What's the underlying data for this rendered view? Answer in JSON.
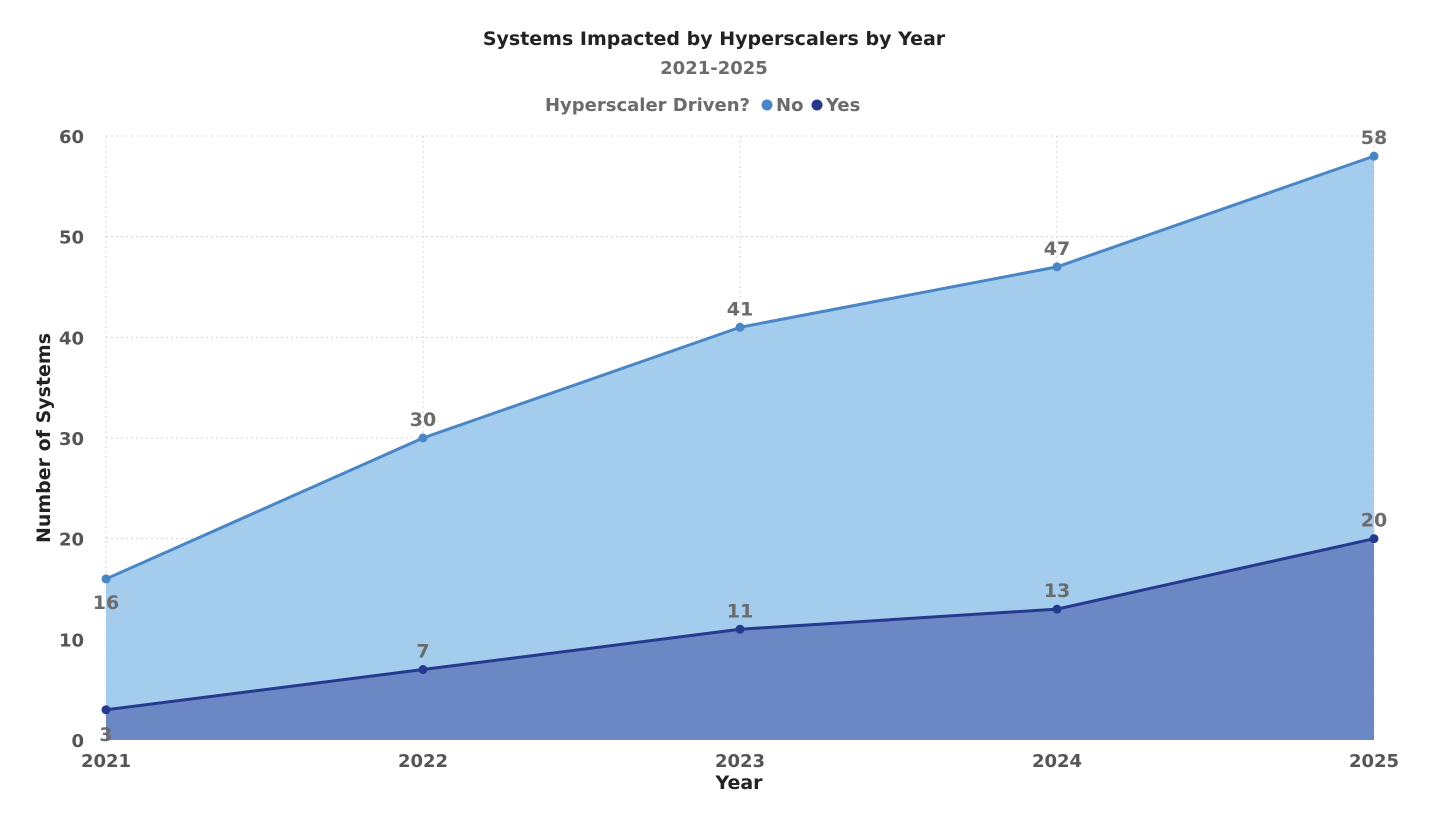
{
  "chart_data": {
    "type": "area",
    "title": "Systems Impacted by Hyperscalers by Year",
    "subtitle": "2021-2025",
    "xlabel": "Year",
    "ylabel": "Number of Systems",
    "x": [
      "2021",
      "2022",
      "2023",
      "2024",
      "2025"
    ],
    "ylim": [
      0,
      60
    ],
    "yticks": [
      0,
      10,
      20,
      30,
      40,
      50,
      60
    ],
    "grid": true,
    "legend": {
      "title": "Hyperscaler Driven?",
      "placement": "top-center",
      "items": [
        "No",
        "Yes"
      ]
    },
    "series": [
      {
        "name": "No",
        "values": [
          16,
          30,
          41,
          47,
          58
        ],
        "line_color": "#4a86c5",
        "fill_color": "#a3cced"
      },
      {
        "name": "Yes",
        "values": [
          3,
          7,
          11,
          13,
          20
        ],
        "line_color": "#253a8e",
        "fill_color": "#6b88c4"
      }
    ]
  }
}
